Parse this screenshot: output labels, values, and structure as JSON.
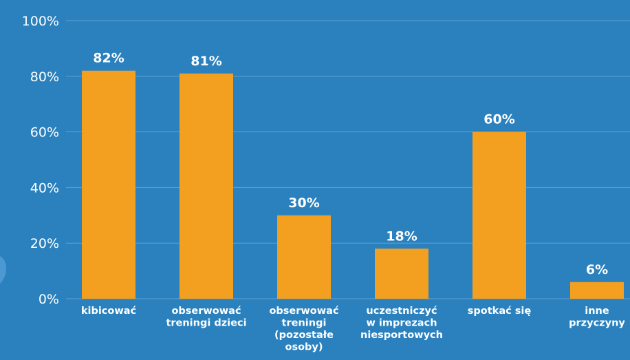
{
  "chart_data": {
    "type": "bar",
    "title": "",
    "xlabel": "",
    "ylabel": "",
    "ylim": [
      0,
      100
    ],
    "yticks": [
      "0%",
      "20%",
      "40%",
      "60%",
      "80%",
      "100%"
    ],
    "grid": true,
    "categories": [
      [
        "kibicować"
      ],
      [
        "obserwować",
        "treningi dzieci"
      ],
      [
        "obserwować",
        "treningi",
        "(pozostałe",
        "osoby)"
      ],
      [
        "uczestniczyć",
        "w imprezach",
        "niesportowych"
      ],
      [
        "spotkać się"
      ],
      [
        "inne",
        "przyczyny"
      ]
    ],
    "values": [
      82,
      81,
      30,
      18,
      60,
      6
    ],
    "value_labels": [
      "82%",
      "81%",
      "30%",
      "18%",
      "60%",
      "6%"
    ],
    "colors": {
      "background": "#2a81be",
      "bar": "#f39f1f",
      "text": "#ffffff",
      "grid": "#5fa3d4"
    }
  }
}
